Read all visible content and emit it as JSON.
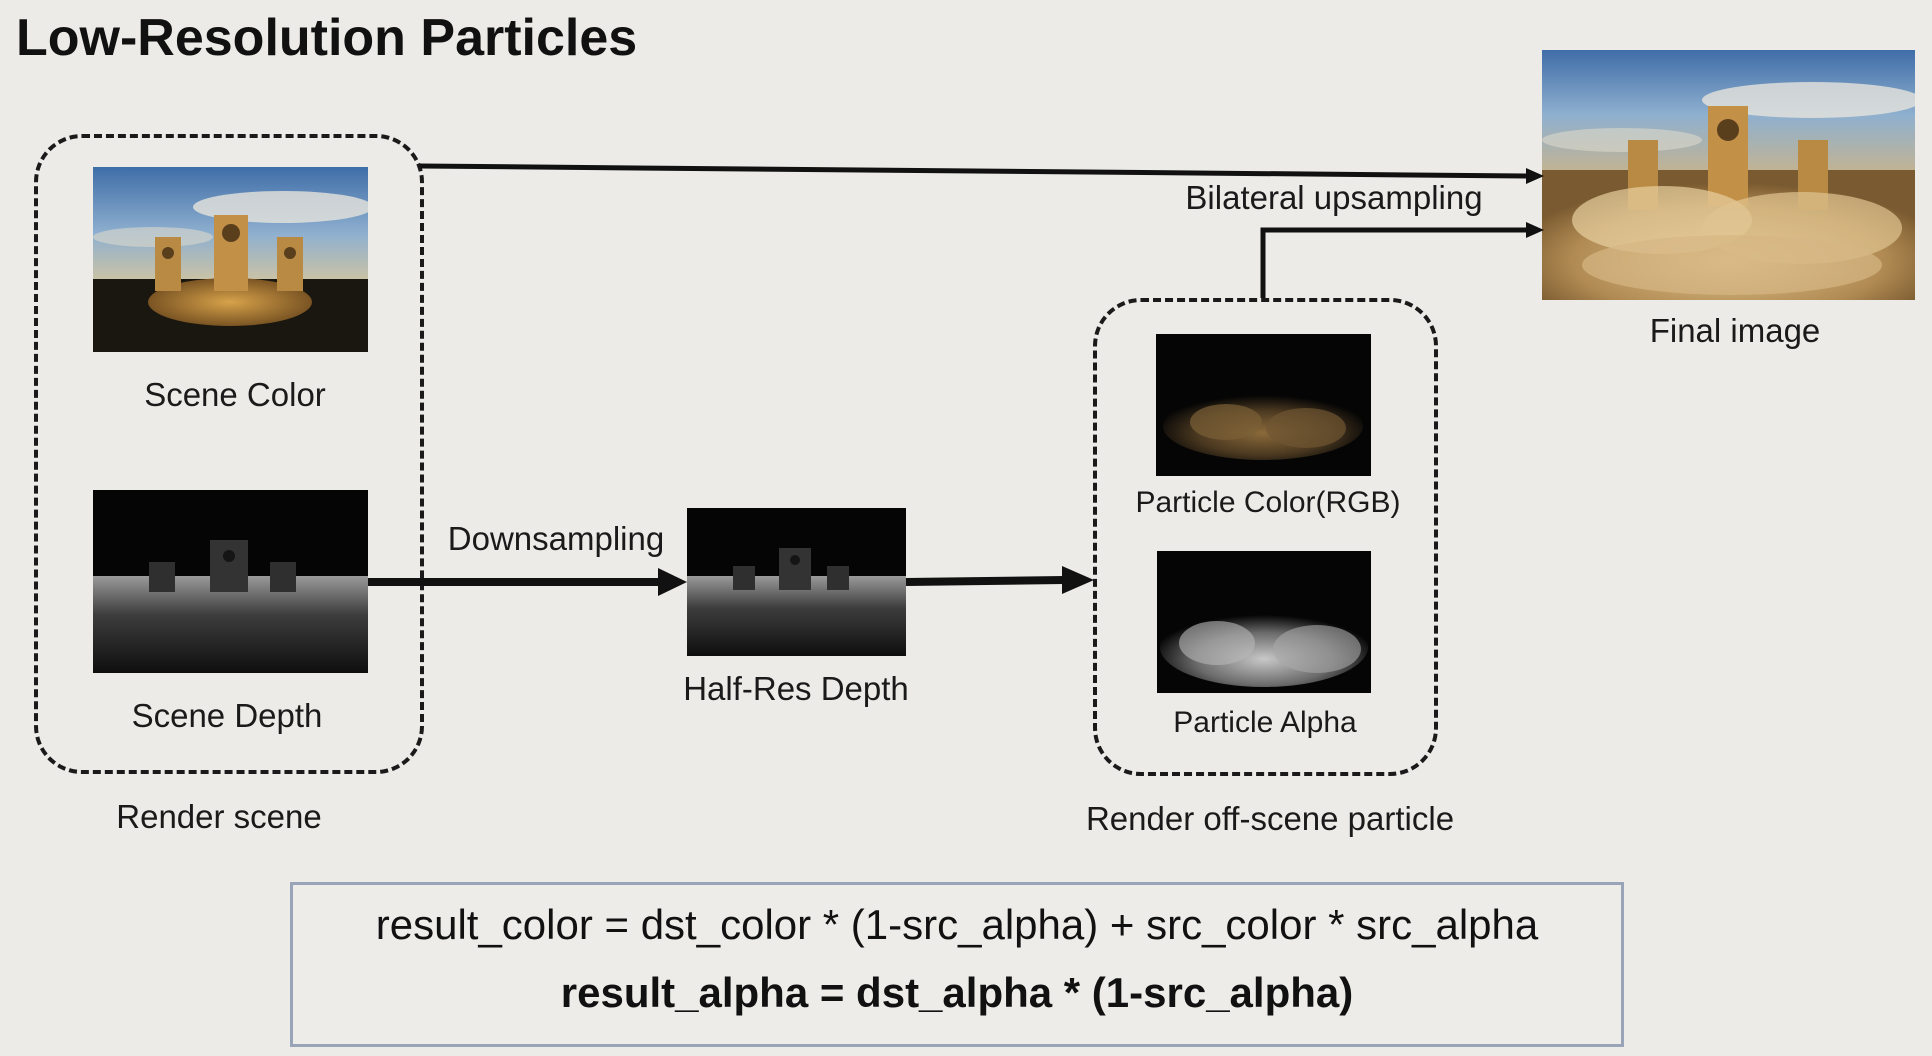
{
  "title": "Low-Resolution Particles",
  "groups": {
    "render_scene": "Render scene",
    "render_particle": "Render off-scene particle"
  },
  "images": {
    "scene_color": "Scene Color",
    "scene_depth": "Scene Depth",
    "half_res_depth": "Half-Res Depth",
    "particle_color": "Particle Color(RGB)",
    "particle_alpha": "Particle Alpha",
    "final_image": "Final image"
  },
  "edges": {
    "downsampling": "Downsampling",
    "bilateral": "Bilateral upsampling"
  },
  "formula": {
    "color": "result_color = dst_color * (1-src_alpha) + src_color * src_alpha",
    "alpha": "result_alpha = dst_alpha * (1-src_alpha)"
  }
}
